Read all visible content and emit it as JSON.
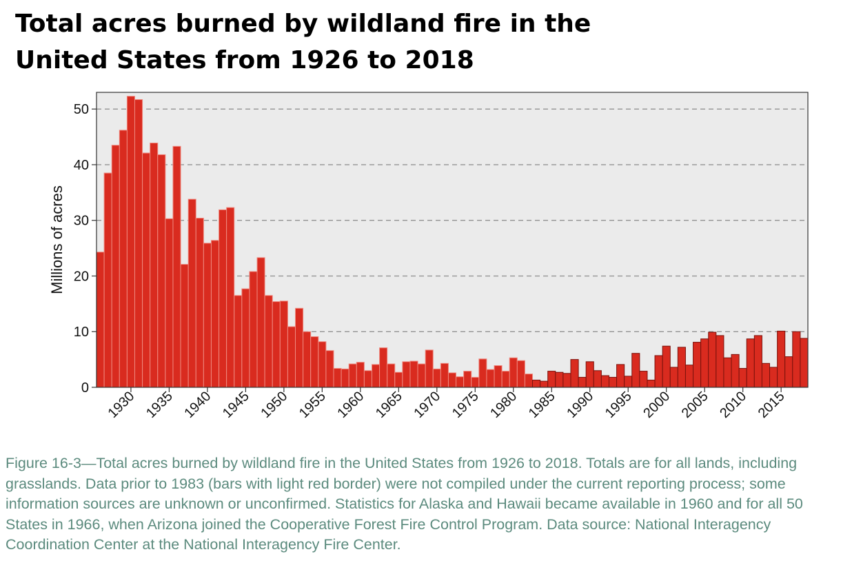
{
  "title_lines": [
    "Total acres burned by wildland fire in the",
    "United States from 1926 to 2018"
  ],
  "caption": "Figure 16-3—Total acres burned by wildland fire in the United States from 1926 to 2018. Totals are for all lands, including grasslands. Data prior to 1983 (bars with light red border) were not compiled under the current reporting process; some information sources are unknown or unconfirmed. Statistics for Alaska and Hawaii became available in 1960 and for all 50 States in 1966, when Arizona joined the Cooperative Forest Fire Control Program. Data source: National Interagency Coordination Center at the National Interagency Fire Center.",
  "colors": {
    "bar_fill": "#d92b1f",
    "bar_border_pre1983": "#ef8a80",
    "bar_border_post1983": "#7a120c",
    "plot_background": "#ebebeb",
    "gridline": "#8a8a8a",
    "axis": "#333333",
    "caption_text": "#5b8a7d"
  },
  "chart_data": {
    "type": "bar",
    "title": "Total acres burned by wildland fire in the United States from 1926 to 2018",
    "xlabel": "",
    "ylabel": "Millions of acres",
    "ylim": [
      0,
      53
    ],
    "xlim": [
      1925.5,
      2018.5
    ],
    "yticks": [
      0,
      10,
      20,
      30,
      40,
      50
    ],
    "xticks": [
      1930,
      1935,
      1940,
      1945,
      1950,
      1955,
      1960,
      1965,
      1970,
      1975,
      1980,
      1985,
      1990,
      1995,
      2000,
      2005,
      2010,
      2015
    ],
    "grid": "horizontal dashed",
    "border_change_year": 1983,
    "x": [
      1926,
      1927,
      1928,
      1929,
      1930,
      1931,
      1932,
      1933,
      1934,
      1935,
      1936,
      1937,
      1938,
      1939,
      1940,
      1941,
      1942,
      1943,
      1944,
      1945,
      1946,
      1947,
      1948,
      1949,
      1950,
      1951,
      1952,
      1953,
      1954,
      1955,
      1956,
      1957,
      1958,
      1959,
      1960,
      1961,
      1962,
      1963,
      1964,
      1965,
      1966,
      1967,
      1968,
      1969,
      1970,
      1971,
      1972,
      1973,
      1974,
      1975,
      1976,
      1977,
      1978,
      1979,
      1980,
      1981,
      1982,
      1983,
      1984,
      1985,
      1986,
      1987,
      1988,
      1989,
      1990,
      1991,
      1992,
      1993,
      1994,
      1995,
      1996,
      1997,
      1998,
      1999,
      2000,
      2001,
      2002,
      2003,
      2004,
      2005,
      2006,
      2007,
      2008,
      2009,
      2010,
      2011,
      2012,
      2013,
      2014,
      2015,
      2016,
      2017,
      2018
    ],
    "values": [
      24.3,
      38.5,
      43.5,
      46.2,
      52.3,
      51.7,
      42.1,
      43.9,
      41.8,
      30.3,
      43.3,
      22.1,
      33.8,
      30.4,
      25.9,
      26.4,
      31.9,
      32.3,
      16.5,
      17.7,
      20.8,
      23.3,
      16.5,
      15.4,
      15.5,
      10.9,
      14.2,
      10.0,
      9.1,
      8.2,
      6.6,
      3.4,
      3.3,
      4.2,
      4.5,
      3.0,
      4.1,
      7.1,
      4.2,
      2.7,
      4.6,
      4.7,
      4.2,
      6.7,
      3.3,
      4.3,
      2.6,
      1.9,
      2.9,
      1.8,
      5.1,
      3.2,
      3.9,
      2.9,
      5.3,
      4.8,
      2.4,
      1.3,
      1.1,
      2.9,
      2.7,
      2.5,
      5.0,
      1.8,
      4.6,
      3.0,
      2.1,
      1.8,
      4.1,
      2.0,
      6.1,
      2.9,
      1.3,
      5.7,
      7.4,
      3.6,
      7.2,
      4.0,
      8.1,
      8.7,
      9.9,
      9.3,
      5.3,
      5.9,
      3.4,
      8.7,
      9.3,
      4.3,
      3.6,
      10.1,
      5.5,
      10.0,
      8.8
    ]
  }
}
